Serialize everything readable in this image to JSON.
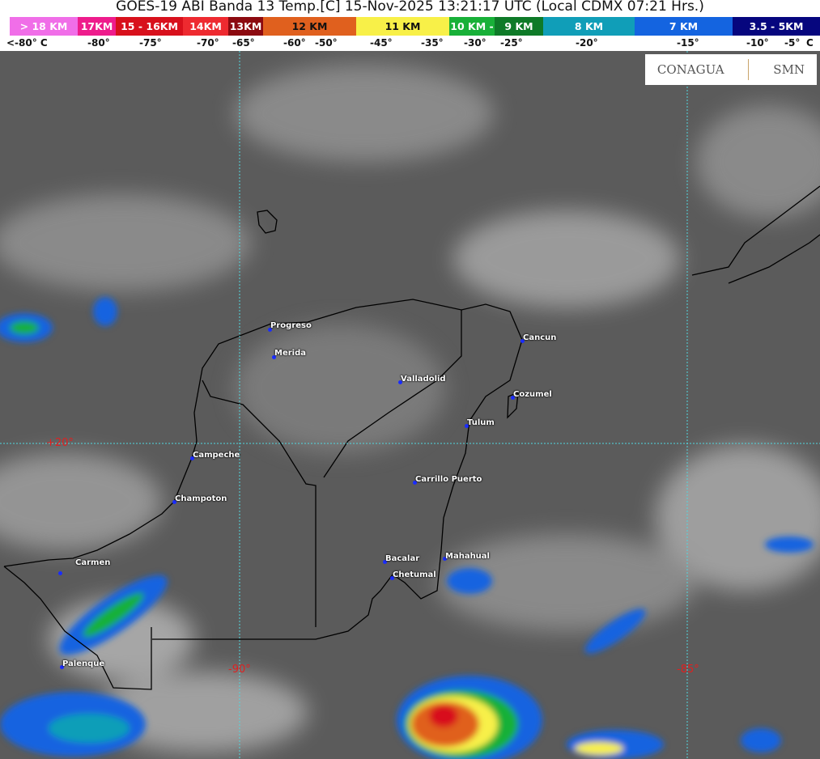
{
  "header": {
    "title": "GOES-19 ABI Banda 13 Temp.[C] 15-Nov-2025 13:21:17 UTC (Local CDMX  07:21 Hrs.)"
  },
  "legend": {
    "bands": [
      {
        "label": "> 18 KM",
        "color": "#f06ee8",
        "width": 84
      },
      {
        "label": "17KM",
        "color": "#ee1c8c",
        "width": 47
      },
      {
        "label": "15 - 16KM",
        "color": "#d8101c",
        "width": 83
      },
      {
        "label": "14KM",
        "color": "#ee2a30",
        "width": 56
      },
      {
        "label": "13KM",
        "color": "#8c0a10",
        "width": 43
      },
      {
        "label": "12 KM",
        "color": "#e0601e",
        "width": 115
      },
      {
        "label": "11 KM",
        "color": "#f8f048",
        "width": 115
      },
      {
        "label": "10 KM -",
        "color": "#18b038",
        "width": 56
      },
      {
        "label": "9 KM",
        "color": "#0e7a28",
        "width": 60
      },
      {
        "label": "8 KM",
        "color": "#109eb8",
        "width": 113
      },
      {
        "label": "7 KM",
        "color": "#1464e0",
        "width": 121
      },
      {
        "label": "3.5 - 5KM",
        "color": "#06067e",
        "width": 108
      }
    ],
    "ticks": [
      "<-80° C",
      "-80°",
      "-75°",
      "-70°",
      "-65°",
      "-60°",
      "-50°",
      "-45°",
      "-35°",
      "-30°",
      "-25°",
      "-20°",
      "-15°",
      "-10°",
      "-5°",
      "C"
    ]
  },
  "logos": {
    "conagua": "CONAGUA",
    "smn": "SMN"
  },
  "grid": {
    "lat": "+20°",
    "lon1": "-90°",
    "lon2": "-85°",
    "color": "#50d8e0"
  },
  "cities": [
    "Progreso",
    "Merida",
    "Valladolid",
    "Cancun",
    "Cozumel",
    "Tulum",
    "Campeche",
    "Carrillo Puerto",
    "Champoton",
    "Carmen",
    "Bacalar",
    "Mahahual",
    "Chetumal",
    "Palenque"
  ]
}
